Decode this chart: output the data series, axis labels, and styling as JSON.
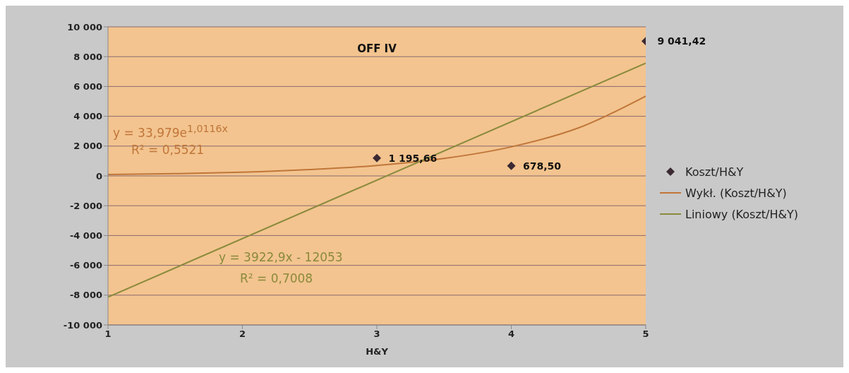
{
  "chart_data": {
    "type": "scatter",
    "title": "OFF IV",
    "xlabel": "H&Y",
    "xlim": [
      1,
      5
    ],
    "xticks": [
      1,
      2,
      3,
      4,
      5
    ],
    "ylim": [
      -10000,
      10000
    ],
    "yticks": [
      {
        "value": -10000,
        "label": "-10 000"
      },
      {
        "value": -8000,
        "label": "-8 000"
      },
      {
        "value": -6000,
        "label": "-6 000"
      },
      {
        "value": -4000,
        "label": "-4 000"
      },
      {
        "value": -2000,
        "label": "-2 000"
      },
      0,
      {
        "value": 2000,
        "label": "2 000"
      },
      {
        "value": 4000,
        "label": "4 000"
      },
      {
        "value": 6000,
        "label": "6 000"
      },
      {
        "value": 8000,
        "label": "8 000"
      },
      {
        "value": 10000,
        "label": "10 000"
      }
    ],
    "grid": "y",
    "legend": "right",
    "series": [
      {
        "name": "Koszt/H&Y",
        "marker": "diamond",
        "color": "#3b2a33",
        "x": [
          3,
          4,
          5
        ],
        "values": [
          1195.66,
          678.5,
          9041.42
        ],
        "value_labels": [
          "1 195,66",
          "678,50",
          "9 041,42"
        ]
      },
      {
        "name": "Wykł. (Koszt/H&Y)",
        "type": "line",
        "color": "#c0763a",
        "x": [
          1,
          1.5,
          2,
          2.5,
          3,
          3.5,
          4,
          4.5,
          5
        ],
        "values": [
          100,
          150,
          250,
          430,
          700,
          1170,
          1950,
          3220,
          5350
        ]
      },
      {
        "name": "Liniowy (Koszt/H&Y)",
        "type": "line",
        "color": "#8a8a3c",
        "x": [
          1,
          5
        ],
        "values": [
          -8130,
          7560
        ]
      }
    ],
    "annotations": [
      "y = 33,979e$^{1,0116x}$",
      "R² = 0,5521",
      "y = 3922,9x - 12053",
      "R² = 0,7008"
    ]
  }
}
